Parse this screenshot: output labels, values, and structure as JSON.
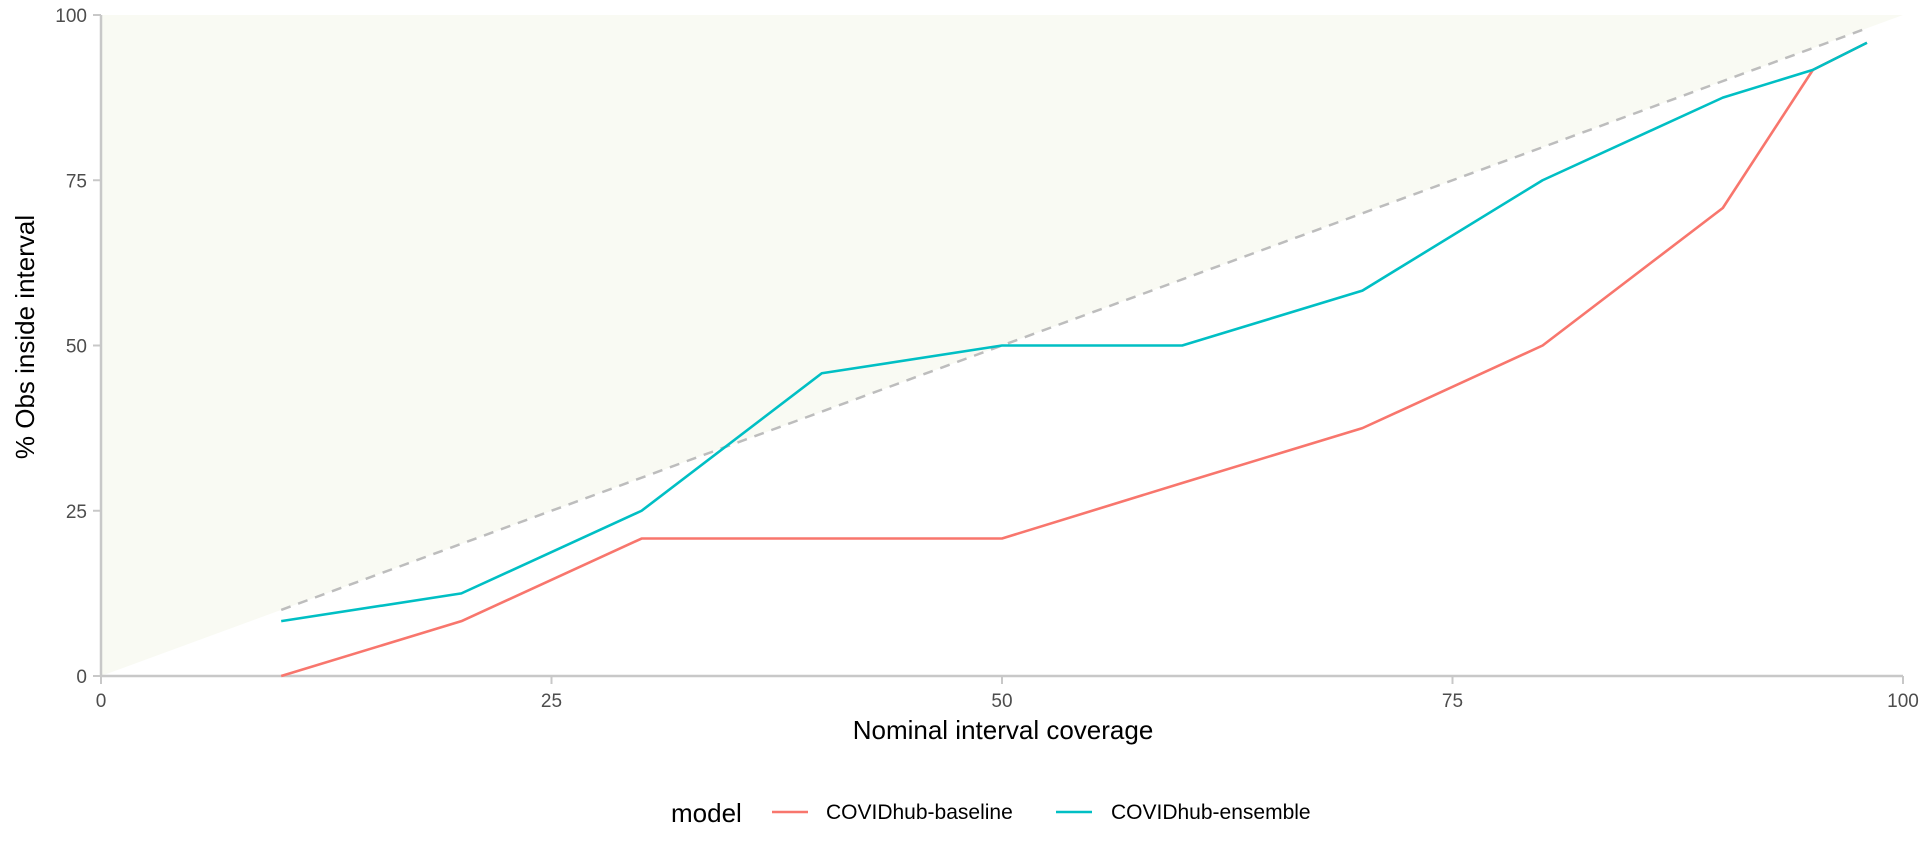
{
  "chart_data": {
    "type": "line",
    "xlabel": "Nominal interval coverage",
    "ylabel": "% Obs inside interval",
    "xlim": [
      0,
      100
    ],
    "ylim": [
      0,
      100
    ],
    "xticks": [
      0,
      25,
      50,
      75,
      100
    ],
    "yticks": [
      0,
      25,
      50,
      75,
      100
    ],
    "grid": false,
    "shaded_region": {
      "description_points": [
        [
          0,
          0
        ],
        [
          100,
          100
        ],
        [
          0,
          100
        ]
      ],
      "color": "#f9faf3"
    },
    "reference_line": {
      "x": [
        10,
        98
      ],
      "y": [
        10,
        98
      ],
      "style": "dashed",
      "color": "#bdbdbd"
    },
    "legend": {
      "title": "model",
      "position": "bottom"
    },
    "series": [
      {
        "name": "COVIDhub-baseline",
        "color": "#f8766d",
        "x": [
          10,
          20,
          30,
          40,
          50,
          60,
          70,
          80,
          90,
          95,
          98
        ],
        "y": [
          0,
          8.3,
          20.8,
          20.8,
          20.8,
          29.2,
          37.5,
          50,
          70.8,
          91.7,
          95.8
        ]
      },
      {
        "name": "COVIDhub-ensemble",
        "color": "#00bfc4",
        "x": [
          10,
          20,
          30,
          40,
          50,
          60,
          70,
          80,
          90,
          95,
          98
        ],
        "y": [
          8.3,
          12.5,
          25,
          45.8,
          50,
          50,
          58.3,
          75,
          87.5,
          91.7,
          95.8
        ]
      }
    ]
  }
}
